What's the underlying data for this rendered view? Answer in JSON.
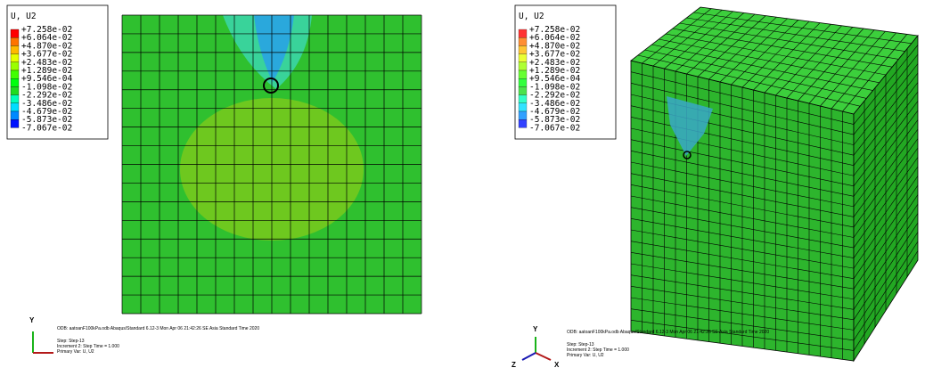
{
  "contour_colors": [
    "#ff0000",
    "#ff7300",
    "#ffb900",
    "#e5ff00",
    "#9aff00",
    "#42ff00",
    "#00ff0e",
    "#1fdc1f",
    "#00ffb9",
    "#00ddff",
    "#0089ff",
    "#0012ff"
  ],
  "panels": [
    {
      "legend": {
        "title": "U, U2",
        "labels": [
          "+7.258e-02",
          "+6.064e-02",
          "+4.870e-02",
          "+3.677e-02",
          "+2.483e-02",
          "+1.289e-02",
          "+9.546e-04",
          "-1.098e-02",
          "-2.292e-02",
          "-3.486e-02",
          "-4.679e-02",
          "-5.873e-02",
          "-7.067e-02"
        ]
      },
      "axes": [
        "Y"
      ],
      "info": {
        "odb": "ODB: aatoanF100kPa.odb    Abaqus/Standard 6.12-3    Mon Apr 06 21:42:26 SE Asia Standard Time 2020",
        "step": "Step: Step-13",
        "increment": "Increment    2: Step Time =    1.000",
        "primary": "Primary Var: U, U2"
      }
    },
    {
      "legend": {
        "title": "U, U2",
        "labels": [
          "+7.258e-02",
          "+6.064e-02",
          "+4.870e-02",
          "+3.677e-02",
          "+2.483e-02",
          "+1.289e-02",
          "+9.546e-04",
          "-1.098e-02",
          "-2.292e-02",
          "-3.486e-02",
          "-4.679e-02",
          "-5.873e-02",
          "-7.067e-02"
        ]
      },
      "axes": [
        "Y",
        "Z",
        "X"
      ],
      "info": {
        "odb": "ODB: aatoanF100kPa.odb    Abaqus/Standard 6.12-3    Mon Apr 06 21:42:26 SE Asia Standard Time 2020",
        "step": "Step: Step-13",
        "increment": "Increment    2: Step Time =    1.000",
        "primary": "Primary Var: U, U2"
      }
    }
  ]
}
